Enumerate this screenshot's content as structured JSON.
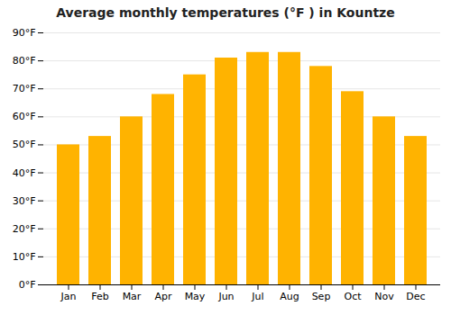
{
  "chart_data": {
    "type": "bar",
    "title": "Average monthly temperatures (°F ) in Kountze",
    "categories": [
      "Jan",
      "Feb",
      "Mar",
      "Apr",
      "May",
      "Jun",
      "Jul",
      "Aug",
      "Sep",
      "Oct",
      "Nov",
      "Dec"
    ],
    "values": [
      50,
      53,
      60,
      68,
      75,
      81,
      83,
      83,
      78,
      69,
      60,
      53
    ],
    "color": "#FFB300",
    "ylim": [
      0,
      90
    ],
    "yticks": [
      {
        "value": 0,
        "label": "0°F"
      },
      {
        "value": 10,
        "label": "10°F"
      },
      {
        "value": 20,
        "label": "20°F"
      },
      {
        "value": 30,
        "label": "30°F"
      },
      {
        "value": 40,
        "label": "40°F"
      },
      {
        "value": 50,
        "label": "50°F"
      },
      {
        "value": 60,
        "label": "60°F"
      },
      {
        "value": 70,
        "label": "70°F"
      },
      {
        "value": 80,
        "label": "80°F"
      },
      {
        "value": 90,
        "label": "90°F"
      }
    ],
    "grid": true
  }
}
